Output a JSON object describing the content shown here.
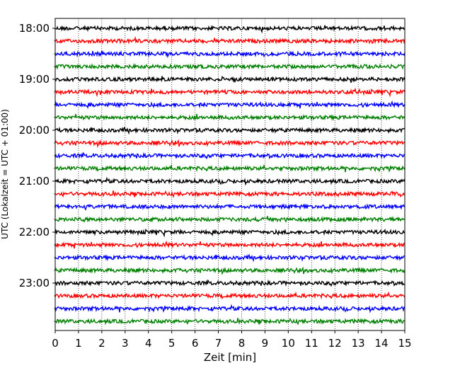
{
  "chart_data": {
    "type": "line",
    "subtype": "helicorder",
    "xlabel": "Zeit  [min]",
    "ylabel": "UTC (Lokalzeit = UTC + 01:00)",
    "xlim": [
      0,
      15
    ],
    "x_ticks": [
      "0",
      "1",
      "2",
      "3",
      "4",
      "5",
      "6",
      "7",
      "8",
      "9",
      "10",
      "11",
      "12",
      "13",
      "14",
      "15"
    ],
    "y_tick_labels": [
      "18:00",
      "19:00",
      "20:00",
      "21:00",
      "22:00",
      "23:00"
    ],
    "rows_start": "18:00",
    "row_interval_minutes": 15,
    "row_count": 24,
    "trace_color_cycle": [
      "#000000",
      "#ff0000",
      "#0000ff",
      "#008000"
    ],
    "grid": "vertical-dotted"
  }
}
